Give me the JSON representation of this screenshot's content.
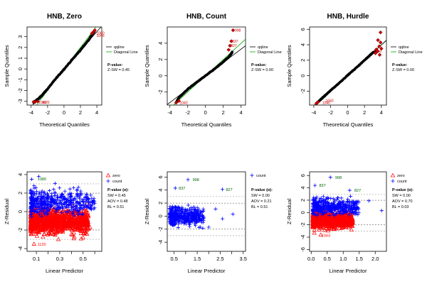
{
  "colors": {
    "zero": "#ff0000",
    "count": "#0000ff",
    "qqline": "#000000",
    "diagonal": "#00aa00",
    "points": "#000000",
    "outlier": "#cc0000",
    "band": "#999999",
    "label_count": "#006400"
  },
  "chart_data": [
    {
      "type": "scatter",
      "panel": "qq",
      "title": "HNB, Zero",
      "xlabel": "Theoretical Quantiles",
      "ylabel": "Sample Quantiles",
      "xlim": [
        -4.5,
        4.6
      ],
      "ylim": [
        -3.35,
        3.9
      ],
      "xticks": [
        -4,
        -2,
        0,
        2,
        4
      ],
      "yticks": [
        -3,
        -2,
        -1,
        0,
        1,
        2,
        3
      ],
      "qqline": {
        "a": -0.02,
        "b": 0.87
      },
      "curve": [
        [
          -3.7,
          -3.1
        ],
        [
          -3.0,
          -2.7
        ],
        [
          -2.0,
          -1.85
        ],
        [
          -1.0,
          -0.9
        ],
        [
          0,
          -0.02
        ],
        [
          1.0,
          0.87
        ],
        [
          2.0,
          1.75
        ],
        [
          3.0,
          2.7
        ],
        [
          3.5,
          3.25
        ],
        [
          3.7,
          3.5
        ]
      ],
      "outliers": [
        [
          3.4,
          3.3
        ],
        [
          3.6,
          3.45
        ],
        [
          3.75,
          3.6
        ],
        [
          -3.2,
          -3.0
        ],
        [
          -3.5,
          -3.05
        ],
        [
          -3.7,
          -3.05
        ]
      ],
      "outlier_labels": [
        {
          "x": 3.95,
          "y": 3.35,
          "text": "1080"
        },
        {
          "x": 3.95,
          "y": 3.1,
          "text": "1046"
        },
        {
          "x": -3.1,
          "y": -3.1,
          "text": "1049"
        },
        {
          "x": -2.7,
          "y": -3.1,
          "text": "1120"
        }
      ],
      "legend": [
        "qqline",
        "Diagonal Line"
      ],
      "annotation_title": "P-value:",
      "annotation": [
        "Z-SW = 0.45"
      ]
    },
    {
      "type": "scatter",
      "panel": "qq",
      "title": "HNB, Count",
      "xlabel": "Theoretical Quantiles",
      "ylabel": "Sample Quantiles",
      "xlim": [
        -4.3,
        4.5
      ],
      "ylim": [
        -3.6,
        6.0
      ],
      "xticks": [
        -4,
        -2,
        0,
        2,
        4
      ],
      "yticks": [
        -2,
        0,
        2,
        4
      ],
      "qqline": {
        "a": 0.0,
        "b": 0.82
      },
      "curve": [
        [
          -3.3,
          -3.3
        ],
        [
          -3.0,
          -2.7
        ],
        [
          -2.0,
          -1.65
        ],
        [
          -1.0,
          -0.8
        ],
        [
          0,
          0.0
        ],
        [
          1.0,
          0.82
        ],
        [
          2.0,
          1.7
        ],
        [
          2.7,
          2.4
        ],
        [
          3.0,
          2.9
        ]
      ],
      "outliers": [
        [
          3.1,
          5.6
        ],
        [
          2.9,
          4.25
        ],
        [
          2.75,
          3.7
        ],
        [
          2.6,
          3.2
        ],
        [
          -3.3,
          -3.3
        ],
        [
          -3.0,
          -3.1
        ]
      ],
      "outlier_labels": [
        {
          "x": 3.3,
          "y": 5.6,
          "text": "998"
        },
        {
          "x": 3.0,
          "y": 4.25,
          "text": "837"
        },
        {
          "x": 2.85,
          "y": 3.75,
          "text": "827"
        },
        {
          "x": -2.9,
          "y": -3.3,
          "text": "1040"
        }
      ],
      "legend": [
        "qqline",
        "Diagonal Line"
      ],
      "annotation_title": "P-value:",
      "annotation": [
        "Z-SW = 0.00"
      ]
    },
    {
      "type": "scatter",
      "panel": "qq",
      "title": "HNB, Hurdle",
      "xlabel": "Theoretical Quantiles",
      "ylabel": "Sample Quantiles",
      "xlim": [
        -4.5,
        4.6
      ],
      "ylim": [
        -3.8,
        6.3
      ],
      "xticks": [
        -4,
        -2,
        0,
        2,
        4
      ],
      "yticks": [
        -2,
        0,
        2,
        4,
        6
      ],
      "qqline": {
        "a": 0.05,
        "b": 0.98
      },
      "curve": [
        [
          -3.7,
          -3.6
        ],
        [
          -3.0,
          -2.9
        ],
        [
          -2.0,
          -1.9
        ],
        [
          -1.0,
          -0.95
        ],
        [
          0,
          0.05
        ],
        [
          1.0,
          1.0
        ],
        [
          2.0,
          2.0
        ],
        [
          3.0,
          3.0
        ],
        [
          3.5,
          3.2
        ]
      ],
      "outliers": [
        [
          3.9,
          5.6
        ],
        [
          3.6,
          4.6
        ],
        [
          3.9,
          4.3
        ],
        [
          3.75,
          3.8
        ],
        [
          4.0,
          3.5
        ],
        [
          3.4,
          3.4
        ],
        [
          3.55,
          3.15
        ],
        [
          3.3,
          2.9
        ],
        [
          3.8,
          2.7
        ],
        [
          -3.7,
          -3.6
        ],
        [
          -3.5,
          -3.4
        ]
      ],
      "outlier_labels": [
        {
          "x": -3.0,
          "y": -3.5,
          "text": "1040"
        },
        {
          "x": -2.6,
          "y": -3.2,
          "text": "1043"
        },
        {
          "x": 3.1,
          "y": 3.2,
          "text": "1060"
        }
      ],
      "legend": [
        "qqline",
        "Diagonal Line"
      ],
      "annotation_title": "P-value:",
      "annotation": [
        "Z-SW = 0.00"
      ]
    },
    {
      "type": "scatter",
      "panel": "resid",
      "xlabel": "Linear Predictor",
      "ylabel": "Z-Residual",
      "xlim": [
        0.02,
        0.66
      ],
      "ylim": [
        -4.3,
        4.3
      ],
      "xticks": [
        0.1,
        0.3,
        0.5
      ],
      "xticklabels": [
        "0.1",
        "0.3",
        "0.5"
      ],
      "xminor": [
        0.2,
        0.4,
        0.6
      ],
      "yticks": [
        -4,
        -2,
        0,
        2,
        4
      ],
      "bands": [
        -3,
        -2,
        -1.96,
        2,
        1.96,
        3
      ],
      "zero_cloud": {
        "xmin": 0.05,
        "xmax": 0.55,
        "center": -1.0,
        "spread": 0.9,
        "n": 1100
      },
      "count_cloud": {
        "xmin": 0.05,
        "xmax": 0.6,
        "center": 1.0,
        "spread": 0.9,
        "n": 450
      },
      "extreme_points": [
        {
          "x": 0.06,
          "y": 3.5,
          "s": "count"
        },
        {
          "x": 0.08,
          "y": -3.5,
          "s": "zero"
        },
        {
          "x": 0.42,
          "y": -2.9,
          "s": "zero"
        },
        {
          "x": 0.52,
          "y": -2.4,
          "s": "zero"
        },
        {
          "x": 0.56,
          "y": -1.7,
          "s": "zero"
        },
        {
          "x": 0.58,
          "y": 1.1,
          "s": "count"
        },
        {
          "x": 0.48,
          "y": 1.9,
          "s": "count"
        },
        {
          "x": 0.12,
          "y": 3.8,
          "s": "count"
        }
      ],
      "labels": [
        {
          "x": 0.11,
          "y": 3.55,
          "text": "1080",
          "color": "label_count"
        },
        {
          "x": 0.11,
          "y": -3.55,
          "text": "1120",
          "color": "zero"
        }
      ],
      "legend": [
        "zero",
        "count"
      ],
      "annotation_title": "P-value (α):",
      "annotation": [
        "SW = 0.45",
        "AOV = 0.48",
        "BL = 0.51"
      ]
    },
    {
      "type": "scatter",
      "panel": "resid",
      "xlabel": "Linear Predictor",
      "ylabel": "Z-Residual",
      "xlim": [
        0.2,
        3.6
      ],
      "ylim": [
        -5.4,
        6.8
      ],
      "xticks": [
        0.5,
        1.5,
        2.5,
        3.5
      ],
      "xticklabels": [
        "0.5",
        "1.5",
        "2.5",
        "3.5"
      ],
      "xminor": [
        1.0,
        2.0,
        3.0
      ],
      "yticks": [
        -4,
        -2,
        0,
        2,
        4,
        6
      ],
      "bands": [
        -3,
        -2,
        -1.96,
        2,
        1.96,
        3
      ],
      "zero_cloud": null,
      "count_cloud": {
        "xmin": 0.3,
        "xmax": 1.8,
        "center": 0.0,
        "spread": 1.0,
        "n": 420
      },
      "extreme_points": [
        {
          "x": 1.1,
          "y": 5.6,
          "s": "count"
        },
        {
          "x": 0.55,
          "y": 4.3,
          "s": "count"
        },
        {
          "x": 2.6,
          "y": 4.1,
          "s": "count"
        },
        {
          "x": 3.05,
          "y": 0.3,
          "s": "count"
        },
        {
          "x": 2.6,
          "y": -0.4,
          "s": "count"
        },
        {
          "x": 2.3,
          "y": 1.1,
          "s": "count"
        },
        {
          "x": 2.0,
          "y": -1.7,
          "s": "count"
        }
      ],
      "labels": [
        {
          "x": 1.3,
          "y": 5.6,
          "text": "998",
          "color": "label_count"
        },
        {
          "x": 0.7,
          "y": 4.3,
          "text": "837",
          "color": "label_count"
        },
        {
          "x": 2.75,
          "y": 4.1,
          "text": "827",
          "color": "label_count"
        }
      ],
      "legend": [
        "count"
      ],
      "annotation_title": "P-value (α):",
      "annotation": [
        "SW = 0.00",
        "AOV = 0.21",
        "BL = 0.51"
      ]
    },
    {
      "type": "scatter",
      "panel": "resid",
      "xlabel": "Linear Predictor",
      "ylabel": "Z-Residual",
      "xlim": [
        -0.05,
        2.35
      ],
      "ylim": [
        -6.3,
        6.6
      ],
      "xticks": [
        0.0,
        0.5,
        1.0,
        1.5,
        2.0
      ],
      "xticklabels": [
        "0.0",
        "0.5",
        "1.0",
        "1.5",
        "2.0"
      ],
      "xminor": [],
      "yticks": [
        -6,
        -4,
        -2,
        0,
        2,
        4,
        6
      ],
      "bands": [
        -3,
        -2,
        -1.96,
        2,
        1.96,
        3
      ],
      "zero_cloud": {
        "xmin": 0.05,
        "xmax": 1.3,
        "center": -1.2,
        "spread": 0.85,
        "n": 900
      },
      "count_cloud": {
        "xmin": 0.05,
        "xmax": 1.5,
        "center": 1.0,
        "spread": 0.9,
        "n": 420
      },
      "extreme_points": [
        {
          "x": 0.6,
          "y": 5.7,
          "s": "count"
        },
        {
          "x": 0.12,
          "y": 4.4,
          "s": "count"
        },
        {
          "x": 1.2,
          "y": 3.6,
          "s": "count"
        },
        {
          "x": 1.8,
          "y": 1.9,
          "s": "count"
        },
        {
          "x": 1.3,
          "y": -1.6,
          "s": "zero"
        },
        {
          "x": 0.3,
          "y": -3.6,
          "s": "zero"
        },
        {
          "x": 0.1,
          "y": -3.3,
          "s": "zero"
        },
        {
          "x": 2.2,
          "y": 0.3,
          "s": "count"
        }
      ],
      "labels": [
        {
          "x": 0.75,
          "y": 5.7,
          "text": "998",
          "color": "label_count"
        },
        {
          "x": 0.25,
          "y": 4.4,
          "text": "837",
          "color": "label_count"
        },
        {
          "x": 1.35,
          "y": 3.6,
          "text": "827",
          "color": "label_count"
        },
        {
          "x": 0.32,
          "y": -3.7,
          "text": "1043",
          "color": "zero"
        }
      ],
      "legend": [
        "zero",
        "count"
      ],
      "annotation_title": "P-value (α):",
      "annotation": [
        "SW = 0.00",
        "AOV = 0.70",
        "BL = 0.03"
      ]
    }
  ]
}
